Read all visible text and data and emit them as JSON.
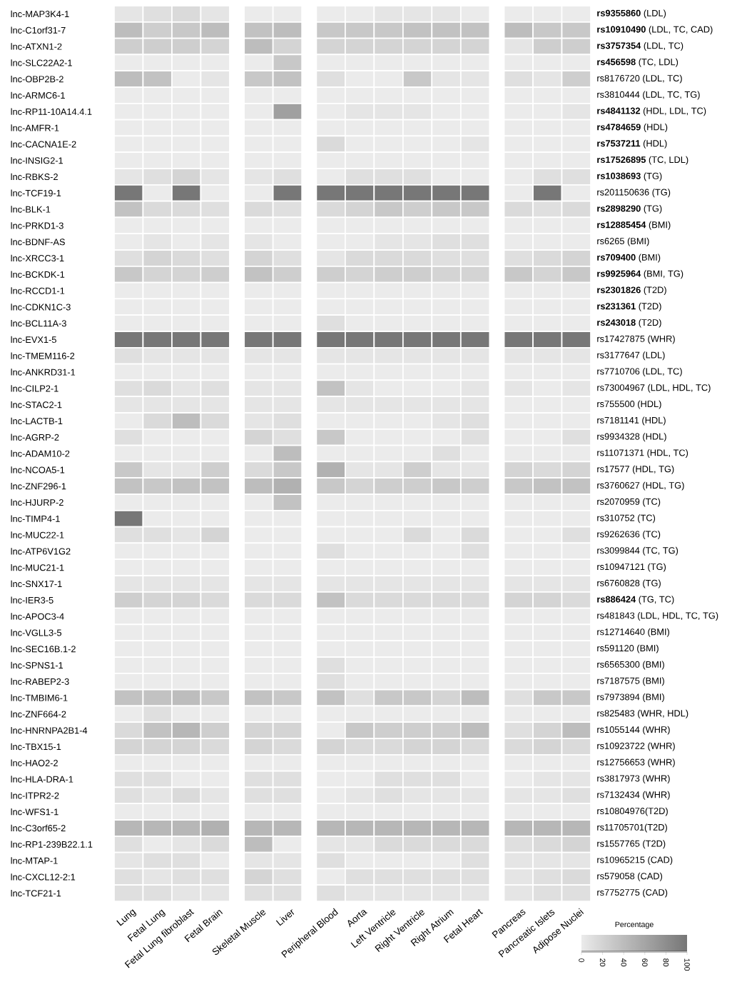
{
  "chart_data": {
    "type": "heatmap",
    "categories": [
      "Lung",
      "Fetal Lung",
      "Fetal Lung fibroblast",
      "Fetal Brain",
      "Skeletal Muscle",
      "Liver",
      "Peripheral Blood",
      "Aorta",
      "Left Ventricle",
      "Right Ventricle",
      "Right Atrium",
      "Fetal Heart",
      "Pancreas",
      "Pancreatic Islets",
      "Adipose Nuclei"
    ],
    "y_categories": [
      "lnc-MAP3K4-1",
      "lnc-C1orf31-7",
      "lnc-ATXN1-2",
      "lnc-SLC22A2-1",
      "lnc-OBP2B-2",
      "lnc-ARMC6-1",
      "lnc-RP11-10A14.4.1",
      "lnc-AMFR-1",
      "lnc-CACNA1E-2",
      "lnc-INSIG2-1",
      "lnc-RBKS-2",
      "lnc-TCF19-1",
      "lnc-BLK-1",
      "lnc-PRKD1-3",
      "lnc-BDNF-AS",
      "lnc-XRCC3-1",
      "lnc-BCKDK-1",
      "lnc-RCCD1-1",
      "lnc-CDKN1C-3",
      "lnc-BCL11A-3",
      "lnc-EVX1-5",
      "lnc-TMEM116-2",
      "lnc-ANKRD31-1",
      "lnc-CILP2-1",
      "lnc-STAC2-1",
      "lnc-LACTB-1",
      "lnc-AGRP-2",
      "lnc-ADAM10-2",
      "lnc-NCOA5-1",
      "lnc-ZNF296-1",
      "lnc-HJURP-2",
      "lnc-TIMP4-1",
      "lnc-MUC22-1",
      "lnc-ATP6V1G2",
      "lnc-MUC21-1",
      "lnc-SNX17-1",
      "lnc-IER3-5",
      "lnc-APOC3-4",
      "lnc-VGLL3-5",
      "lnc-SEC16B.1-2",
      "lnc-SPNS1-1",
      "lnc-RABEP2-3",
      "lnc-TMBIM6-1",
      "lnc-ZNF664-2",
      "lnc-HNRNPA2B1-4",
      "lnc-TBX15-1",
      "lnc-HAO2-2",
      "lnc-HLA-DRA-1",
      "lnc-ITPR2-2",
      "lnc-WFS1-1",
      "lnc-C3orf65-2",
      "lnc-RP1-239B22.1.1",
      "lnc-MTAP-1",
      "lnc-CXCL12-2:1",
      "lnc-TCF21-1"
    ],
    "y2_categories": [
      "**rs9355860** (LDL)",
      "**rs10910490** (LDL, TC, CAD)",
      "**rs3757354** (LDL, TC)",
      "**rs456598** (TC, LDL)",
      "rs8176720 (LDL, TC)",
      "rs3810444 (LDL, TC, TG)",
      "**rs4841132** (HDL, LDL, TC)",
      "**rs4784659** (HDL)",
      "**rs7537211** (HDL)",
      "**rs17526895** (TC, LDL)",
      "**rs1038693** (TG)",
      "rs201150636 (TG)",
      "**rs2898290** (TG)",
      "**rs12885454** (BMI)",
      "rs6265 (BMI)",
      "**rs709400** (BMI)",
      "**rs9925964** (BMI, TG)",
      "**rs2301826** (T2D)",
      "**rs231361** (T2D)",
      "**rs243018** (T2D)",
      "rs17427875 (WHR)",
      "rs3177647 (LDL)",
      "rs7710706 (LDL, TC)",
      "rs73004967 (LDL, HDL, TC)",
      "rs755500 (HDL)",
      "rs7181141 (HDL)",
      "rs9934328 (HDL)",
      "rs11071371 (HDL, TC)",
      "rs17577 (HDL, TG)",
      "rs3760627 (HDL, TG)",
      "rs2070959 (TC)",
      "rs310752 (TC)",
      "rs9262636 (TC)",
      "rs3099844 (TC, TG)",
      "rs10947121 (TG)",
      "rs6760828 (TG)",
      "**rs886424** (TG, TC)",
      "rs481843 (LDL, HDL, TC, TG)",
      "rs12714640 (BMI)",
      "rs591120 (BMI)",
      "rs6565300 (BMI)",
      "rs7187575 (BMI)",
      "rs7973894 (BMI)",
      "rs825483 (WHR, HDL)",
      "rs1055144 (WHR)",
      "rs10923722 (WHR)",
      "rs12756653 (WHR)",
      "rs3817973 (WHR)",
      "rs7132434 (WHR)",
      "rs10804976(T2D)",
      "rs11705701(T2D)",
      "rs1557765 (T2D)",
      "rs10965215 (CAD)",
      "rs579058 (CAD)",
      "rs7752775 (CAD)"
    ],
    "clabel": "Percentage",
    "clim": [
      0,
      100
    ],
    "cticks": [
      0,
      20,
      40,
      60,
      80,
      100
    ],
    "cells": [
      [
        5,
        10,
        15,
        5,
        0,
        0,
        0,
        0,
        5,
        5,
        5,
        0,
        0,
        0,
        0
      ],
      [
        40,
        25,
        30,
        40,
        35,
        40,
        30,
        30,
        30,
        35,
        35,
        35,
        40,
        30,
        30
      ],
      [
        25,
        25,
        25,
        20,
        40,
        20,
        20,
        20,
        20,
        20,
        20,
        20,
        5,
        25,
        25
      ],
      [
        0,
        0,
        0,
        0,
        0,
        30,
        0,
        0,
        0,
        0,
        0,
        0,
        0,
        0,
        0
      ],
      [
        40,
        35,
        0,
        5,
        30,
        35,
        10,
        0,
        0,
        30,
        5,
        5,
        10,
        5,
        25
      ],
      [
        0,
        0,
        0,
        0,
        0,
        0,
        0,
        0,
        0,
        0,
        0,
        0,
        0,
        0,
        0
      ],
      [
        0,
        0,
        0,
        0,
        0,
        65,
        0,
        5,
        5,
        5,
        0,
        0,
        0,
        0,
        5
      ],
      [
        0,
        0,
        0,
        0,
        0,
        0,
        0,
        0,
        0,
        0,
        0,
        0,
        0,
        0,
        0
      ],
      [
        0,
        0,
        0,
        0,
        0,
        0,
        15,
        0,
        0,
        0,
        0,
        5,
        0,
        0,
        0
      ],
      [
        0,
        0,
        0,
        0,
        0,
        0,
        0,
        0,
        0,
        0,
        0,
        0,
        0,
        0,
        0
      ],
      [
        5,
        10,
        20,
        5,
        5,
        10,
        0,
        10,
        10,
        10,
        0,
        0,
        0,
        10,
        10
      ],
      [
        100,
        0,
        100,
        0,
        0,
        100,
        100,
        100,
        100,
        100,
        100,
        100,
        0,
        100,
        0
      ],
      [
        35,
        15,
        15,
        10,
        15,
        10,
        15,
        20,
        30,
        25,
        30,
        30,
        15,
        10,
        15
      ],
      [
        0,
        0,
        0,
        0,
        0,
        0,
        0,
        0,
        0,
        0,
        0,
        0,
        0,
        0,
        0
      ],
      [
        0,
        5,
        0,
        5,
        5,
        0,
        0,
        0,
        5,
        5,
        10,
        10,
        0,
        0,
        0
      ],
      [
        10,
        20,
        15,
        10,
        20,
        10,
        5,
        15,
        15,
        15,
        10,
        10,
        10,
        15,
        20
      ],
      [
        30,
        20,
        20,
        25,
        35,
        25,
        25,
        20,
        25,
        25,
        20,
        20,
        30,
        20,
        30
      ],
      [
        0,
        0,
        0,
        0,
        0,
        0,
        0,
        0,
        0,
        0,
        0,
        0,
        0,
        0,
        0
      ],
      [
        0,
        0,
        0,
        0,
        0,
        0,
        0,
        0,
        0,
        0,
        0,
        0,
        0,
        0,
        0
      ],
      [
        0,
        0,
        0,
        0,
        0,
        0,
        10,
        0,
        0,
        0,
        0,
        0,
        0,
        0,
        0
      ],
      [
        100,
        100,
        100,
        100,
        100,
        100,
        100,
        100,
        100,
        100,
        100,
        100,
        100,
        100,
        100
      ],
      [
        10,
        5,
        5,
        5,
        5,
        5,
        5,
        5,
        5,
        5,
        5,
        5,
        5,
        5,
        5
      ],
      [
        0,
        0,
        0,
        0,
        0,
        0,
        0,
        0,
        0,
        0,
        0,
        0,
        0,
        0,
        0
      ],
      [
        10,
        15,
        5,
        10,
        5,
        5,
        35,
        5,
        0,
        0,
        0,
        5,
        5,
        0,
        5
      ],
      [
        5,
        5,
        5,
        5,
        5,
        5,
        5,
        5,
        5,
        5,
        5,
        5,
        0,
        0,
        0
      ],
      [
        0,
        15,
        40,
        15,
        5,
        10,
        0,
        0,
        0,
        0,
        5,
        10,
        0,
        0,
        0
      ],
      [
        10,
        0,
        0,
        0,
        20,
        10,
        30,
        0,
        0,
        0,
        0,
        10,
        0,
        0,
        10
      ],
      [
        0,
        0,
        0,
        0,
        0,
        40,
        0,
        0,
        0,
        0,
        10,
        0,
        0,
        0,
        0
      ],
      [
        30,
        5,
        5,
        25,
        15,
        30,
        50,
        5,
        5,
        25,
        5,
        5,
        20,
        15,
        20
      ],
      [
        35,
        30,
        35,
        35,
        40,
        50,
        30,
        20,
        25,
        25,
        30,
        25,
        30,
        35,
        35
      ],
      [
        0,
        0,
        0,
        0,
        0,
        35,
        0,
        0,
        0,
        0,
        0,
        0,
        0,
        0,
        0
      ],
      [
        100,
        0,
        0,
        0,
        0,
        0,
        0,
        0,
        0,
        0,
        0,
        0,
        0,
        0,
        0
      ],
      [
        10,
        10,
        5,
        20,
        0,
        0,
        0,
        0,
        0,
        15,
        0,
        15,
        0,
        0,
        10
      ],
      [
        0,
        0,
        0,
        0,
        0,
        0,
        10,
        0,
        0,
        0,
        0,
        10,
        0,
        0,
        0
      ],
      [
        0,
        0,
        0,
        0,
        0,
        0,
        0,
        0,
        0,
        0,
        0,
        0,
        0,
        0,
        0
      ],
      [
        5,
        5,
        5,
        5,
        5,
        5,
        5,
        5,
        5,
        5,
        5,
        5,
        5,
        5,
        5
      ],
      [
        25,
        20,
        20,
        15,
        15,
        15,
        35,
        15,
        15,
        15,
        15,
        15,
        20,
        20,
        15
      ],
      [
        0,
        0,
        0,
        0,
        0,
        0,
        0,
        0,
        0,
        0,
        0,
        0,
        0,
        0,
        0
      ],
      [
        0,
        0,
        0,
        0,
        0,
        0,
        0,
        0,
        0,
        0,
        0,
        0,
        0,
        0,
        0
      ],
      [
        0,
        0,
        0,
        0,
        0,
        0,
        0,
        0,
        0,
        0,
        0,
        0,
        0,
        0,
        0
      ],
      [
        0,
        0,
        0,
        0,
        0,
        0,
        10,
        0,
        0,
        0,
        0,
        0,
        0,
        0,
        0
      ],
      [
        0,
        0,
        0,
        0,
        0,
        0,
        10,
        0,
        0,
        0,
        0,
        0,
        0,
        0,
        0
      ],
      [
        35,
        35,
        40,
        30,
        35,
        30,
        35,
        10,
        30,
        30,
        20,
        40,
        10,
        30,
        30
      ],
      [
        0,
        10,
        0,
        0,
        0,
        0,
        0,
        0,
        0,
        0,
        0,
        0,
        0,
        0,
        0
      ],
      [
        15,
        35,
        45,
        25,
        20,
        20,
        0,
        30,
        25,
        25,
        25,
        40,
        10,
        20,
        40
      ],
      [
        20,
        20,
        20,
        15,
        20,
        15,
        20,
        15,
        15,
        20,
        20,
        15,
        15,
        20,
        15
      ],
      [
        0,
        0,
        0,
        0,
        0,
        0,
        0,
        0,
        0,
        0,
        0,
        0,
        0,
        0,
        0
      ],
      [
        10,
        10,
        0,
        0,
        10,
        10,
        0,
        0,
        10,
        10,
        10,
        0,
        0,
        5,
        5
      ],
      [
        10,
        5,
        15,
        5,
        10,
        10,
        0,
        5,
        10,
        5,
        5,
        5,
        5,
        5,
        10
      ],
      [
        0,
        0,
        0,
        0,
        0,
        0,
        0,
        0,
        0,
        0,
        0,
        0,
        0,
        0,
        0
      ],
      [
        45,
        45,
        45,
        50,
        45,
        45,
        45,
        45,
        45,
        45,
        45,
        45,
        45,
        45,
        45
      ],
      [
        10,
        0,
        5,
        15,
        40,
        0,
        5,
        5,
        15,
        15,
        15,
        15,
        10,
        15,
        20
      ],
      [
        5,
        10,
        10,
        0,
        5,
        5,
        10,
        0,
        0,
        0,
        0,
        10,
        5,
        5,
        5
      ],
      [
        10,
        5,
        10,
        10,
        20,
        10,
        0,
        10,
        10,
        10,
        10,
        10,
        5,
        10,
        15
      ],
      [
        10,
        10,
        5,
        5,
        10,
        10,
        10,
        5,
        5,
        5,
        5,
        5,
        5,
        10,
        10
      ]
    ]
  }
}
